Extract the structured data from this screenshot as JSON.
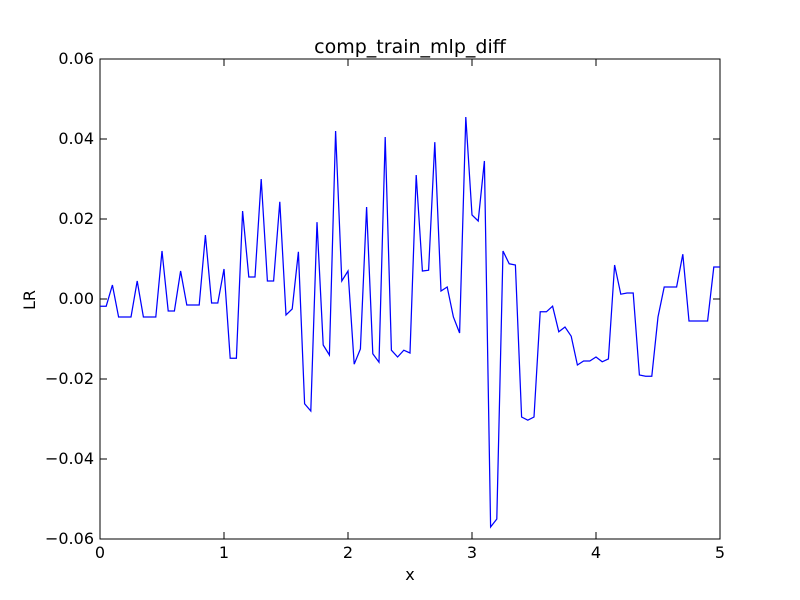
{
  "chart_data": {
    "type": "line",
    "title": "comp_train_mlp_diff",
    "xlabel": "x",
    "ylabel": "LR",
    "xlim": [
      0,
      5
    ],
    "ylim": [
      -0.06,
      0.06
    ],
    "grid": false,
    "series_color": "#0000ff",
    "xticks": [
      0,
      1,
      2,
      3,
      4,
      5
    ],
    "xtick_labels": [
      "0",
      "1",
      "2",
      "3",
      "4",
      "5"
    ],
    "yticks": [
      -0.06,
      -0.04,
      -0.02,
      0.0,
      0.02,
      0.04,
      0.06
    ],
    "ytick_labels": [
      "−0.06",
      "−0.04",
      "−0.02",
      "0.00",
      "0.02",
      "0.04",
      "0.06"
    ],
    "series": [
      {
        "x": [
          0.0,
          0.05,
          0.1,
          0.15,
          0.2,
          0.25,
          0.3,
          0.35,
          0.4,
          0.45,
          0.5,
          0.55,
          0.6,
          0.65,
          0.7,
          0.75,
          0.8,
          0.85,
          0.9,
          0.95,
          1.0,
          1.05,
          1.1,
          1.15,
          1.2,
          1.25,
          1.3,
          1.35,
          1.4,
          1.45,
          1.5,
          1.55,
          1.6,
          1.65,
          1.7,
          1.75,
          1.8,
          1.85,
          1.9,
          1.95,
          2.0,
          2.05,
          2.1,
          2.15,
          2.2,
          2.25,
          2.3,
          2.35,
          2.4,
          2.45,
          2.5,
          2.55,
          2.6,
          2.65,
          2.7,
          2.75,
          2.8,
          2.85,
          2.9,
          2.95,
          3.0,
          3.05,
          3.1,
          3.15,
          3.2,
          3.25,
          3.3,
          3.35,
          3.4,
          3.45,
          3.5,
          3.55,
          3.6,
          3.65,
          3.7,
          3.75,
          3.8,
          3.85,
          3.9,
          3.95,
          4.0,
          4.05,
          4.1,
          4.15,
          4.2,
          4.25,
          4.3,
          4.35,
          4.4,
          4.45,
          4.5,
          4.55,
          4.6,
          4.65,
          4.7,
          4.75,
          4.8,
          4.85,
          4.9,
          4.95,
          5.0
        ],
        "y": [
          -0.0018,
          -0.0018,
          0.0035,
          -0.0045,
          -0.0045,
          -0.0045,
          0.0045,
          -0.0045,
          -0.0045,
          -0.0045,
          0.012,
          -0.003,
          -0.003,
          0.007,
          -0.0015,
          -0.0015,
          -0.0015,
          0.016,
          -0.001,
          -0.001,
          0.0075,
          -0.0148,
          -0.0148,
          0.022,
          0.0055,
          0.0055,
          0.03,
          0.0045,
          0.0045,
          0.0243,
          -0.004,
          -0.0025,
          0.0118,
          -0.0262,
          -0.028,
          0.0192,
          -0.0115,
          -0.014,
          0.042,
          0.0045,
          0.007,
          -0.0163,
          -0.0125,
          0.023,
          -0.0137,
          -0.0158,
          0.0405,
          -0.0128,
          -0.0145,
          -0.0128,
          -0.0135,
          0.031,
          0.007,
          0.0072,
          0.0392,
          0.002,
          0.003,
          -0.0045,
          -0.0085,
          0.0455,
          0.021,
          0.0195,
          0.0345,
          -0.057,
          -0.055,
          0.012,
          0.0088,
          0.0085,
          -0.0295,
          -0.0303,
          -0.0295,
          -0.0032,
          -0.0032,
          -0.0018,
          -0.0082,
          -0.007,
          -0.0093,
          -0.0165,
          -0.0155,
          -0.0155,
          -0.0145,
          -0.0157,
          -0.015,
          0.0085,
          0.0012,
          0.0015,
          0.0015,
          -0.019,
          -0.0193,
          -0.0193,
          -0.0045,
          0.003,
          0.003,
          0.003,
          0.0112,
          -0.0055,
          -0.0055,
          -0.0055,
          -0.0055,
          0.008,
          0.008
        ]
      }
    ]
  }
}
